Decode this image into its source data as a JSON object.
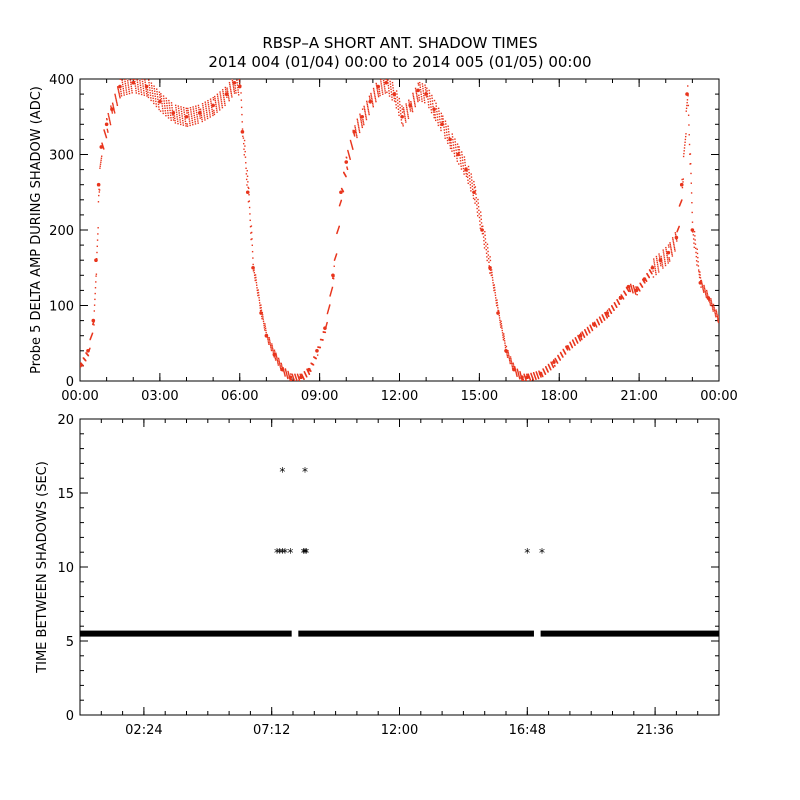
{
  "title": {
    "line1": "RBSP–A SHORT ANT. SHADOW TIMES",
    "line2": "2014 004 (01/04) 00:00 to 2014 005 (01/05) 00:00"
  },
  "colors": {
    "series_top": "#e8341c",
    "series_bottom": "#000000",
    "axis": "#000000"
  },
  "chart_data": [
    {
      "type": "scatter",
      "ylabel": "Probe 5 DELTA AMP DURING SHADOW (ADC)",
      "xlabel": "",
      "xlim": [
        0,
        24
      ],
      "ylim": [
        0,
        400
      ],
      "x_tick_labels": [
        "00:00",
        "03:00",
        "06:00",
        "09:00",
        "12:00",
        "15:00",
        "18:00",
        "21:00",
        "00:00"
      ],
      "y_tick_labels": [
        "0",
        "100",
        "200",
        "300",
        "400"
      ],
      "series": [
        {
          "name": "delta amplitude",
          "x": [
            0.0,
            0.3,
            0.5,
            0.6,
            0.7,
            0.8,
            1.0,
            1.2,
            1.5,
            2.0,
            2.5,
            3.0,
            3.5,
            4.0,
            4.5,
            5.0,
            5.5,
            5.8,
            6.0,
            6.1,
            6.3,
            6.5,
            6.8,
            7.0,
            7.3,
            7.6,
            7.9,
            8.3,
            8.6,
            8.9,
            9.2,
            9.5,
            9.8,
            10.0,
            10.3,
            10.6,
            10.9,
            11.2,
            11.5,
            11.8,
            12.1,
            12.4,
            12.7,
            13.0,
            13.3,
            13.6,
            13.9,
            14.2,
            14.5,
            14.8,
            15.1,
            15.4,
            15.7,
            16.0,
            16.3,
            16.6,
            16.8,
            17.3,
            17.8,
            18.3,
            18.8,
            19.3,
            19.8,
            20.3,
            20.6,
            20.9,
            21.2,
            21.5,
            21.8,
            22.1,
            22.4,
            22.6,
            22.8,
            23.0,
            23.3,
            23.6,
            24.0
          ],
          "y": [
            20,
            40,
            80,
            160,
            260,
            310,
            340,
            360,
            390,
            395,
            390,
            370,
            355,
            350,
            355,
            365,
            380,
            395,
            390,
            330,
            250,
            150,
            90,
            60,
            35,
            15,
            5,
            5,
            15,
            40,
            70,
            140,
            250,
            290,
            330,
            350,
            370,
            390,
            395,
            380,
            350,
            365,
            385,
            380,
            360,
            340,
            320,
            300,
            280,
            250,
            200,
            150,
            90,
            40,
            15,
            5,
            5,
            10,
            25,
            45,
            60,
            75,
            90,
            110,
            125,
            120,
            135,
            150,
            160,
            170,
            190,
            260,
            380,
            200,
            130,
            110,
            80
          ]
        }
      ]
    },
    {
      "type": "scatter",
      "ylabel": "TIME BETWEEN SHADOWS (SEC)",
      "xlabel": "",
      "xlim": [
        0,
        24
      ],
      "ylim": [
        0,
        20
      ],
      "x_tick_labels": [
        "02:24",
        "07:12",
        "12:00",
        "16:48",
        "21:36"
      ],
      "y_tick_labels": [
        "0",
        "5",
        "10",
        "15",
        "20"
      ],
      "series": [
        {
          "name": "baseline interval",
          "x_range": [
            0.0,
            24.0
          ],
          "y": 5.5
        },
        {
          "name": "outlier intervals",
          "x": [
            7.4,
            7.5,
            7.6,
            7.7,
            7.9,
            8.4,
            8.45,
            8.5,
            16.8,
            17.35,
            7.6,
            8.45
          ],
          "y": [
            11,
            11,
            11,
            11,
            11,
            11,
            11,
            11,
            11,
            11,
            16.5,
            16.5
          ]
        }
      ]
    }
  ]
}
